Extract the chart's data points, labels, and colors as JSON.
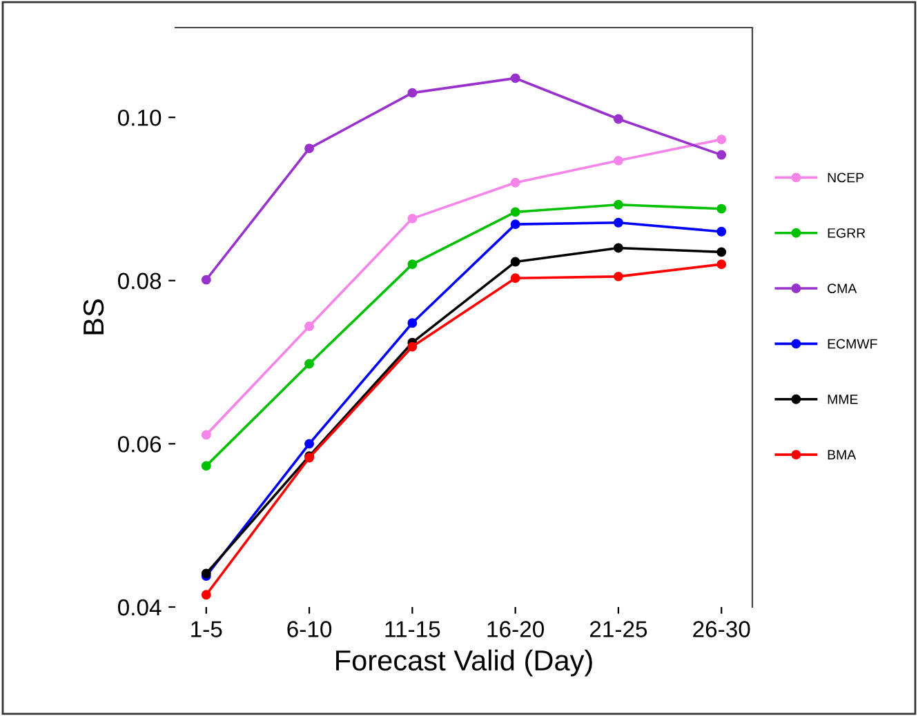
{
  "chart_data": {
    "type": "line",
    "xlabel": "Forecast Valid (Day)",
    "ylabel": "BS",
    "categories": [
      "1-5",
      "6-10",
      "11-15",
      "16-20",
      "21-25",
      "26-30"
    ],
    "series": [
      {
        "name": "NCEP",
        "color": "#f585e8",
        "values": [
          0.0611,
          0.0744,
          0.0876,
          0.092,
          0.0947,
          0.0973
        ]
      },
      {
        "name": "EGRR",
        "color": "#00c000",
        "values": [
          0.0573,
          0.0698,
          0.082,
          0.0884,
          0.0893,
          0.0888
        ]
      },
      {
        "name": "CMA",
        "color": "#9932cc",
        "values": [
          0.0801,
          0.0962,
          0.103,
          0.1048,
          0.0998,
          0.0954
        ]
      },
      {
        "name": "ECMWF",
        "color": "#0000ff",
        "values": [
          0.0438,
          0.06,
          0.0748,
          0.0869,
          0.0871,
          0.086
        ]
      },
      {
        "name": "MME",
        "color": "#000000",
        "values": [
          0.0441,
          0.0585,
          0.0724,
          0.0823,
          0.084,
          0.0835
        ]
      },
      {
        "name": "BMA",
        "color": "#ff0000",
        "values": [
          0.0415,
          0.0583,
          0.0719,
          0.0803,
          0.0805,
          0.082
        ]
      }
    ],
    "ylim": [
      0.04,
      0.111
    ],
    "yticks": [
      {
        "value": 0.04,
        "label": "0.04"
      },
      {
        "value": 0.06,
        "label": "0.06"
      },
      {
        "value": 0.08,
        "label": "0.08"
      },
      {
        "value": 0.1,
        "label": "0.10"
      }
    ],
    "grid": false,
    "legend": "right",
    "marker": "circle",
    "line_style": "solid"
  }
}
